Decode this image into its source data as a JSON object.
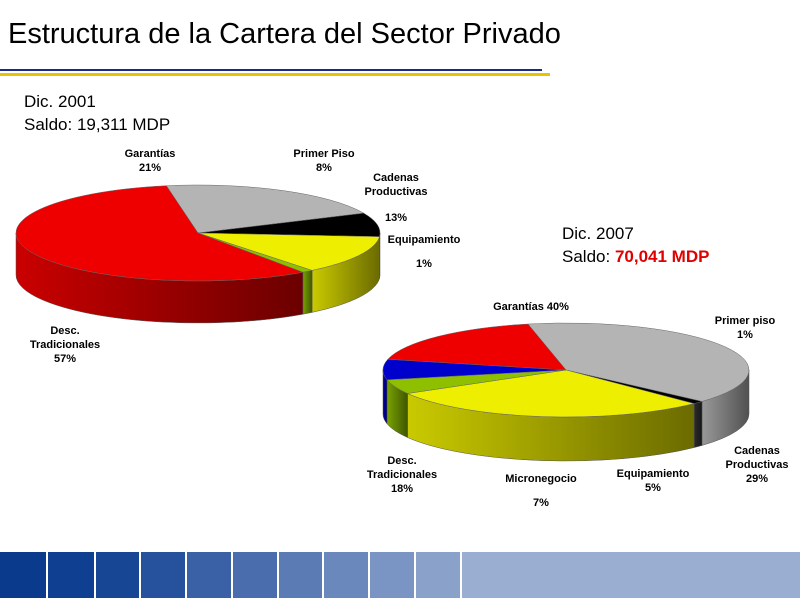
{
  "slide": {
    "title": "Estructura de la Cartera del Sector Privado"
  },
  "chart_data": [
    {
      "type": "pie",
      "info_line1": "Dic. 2001",
      "info_line2_prefix": "Saldo: ",
      "info_line2_value": "19,311 MDP",
      "slices": [
        {
          "label_lines": [
            "Garantías"
          ],
          "pct_label": "21%",
          "value": 21,
          "color": "#b4b4b4"
        },
        {
          "label_lines": [
            "Primer Piso"
          ],
          "pct_label": "8%",
          "value": 8,
          "color": "#000000"
        },
        {
          "label_lines": [
            "Cadenas",
            "Productivas"
          ],
          "pct_label": "13%",
          "value": 13,
          "color": "#eeee00"
        },
        {
          "label_lines": [
            "Equipamiento"
          ],
          "pct_label": "1%",
          "value": 1,
          "color": "#8ec000"
        },
        {
          "label_lines": [
            "Desc.",
            "Tradicionales"
          ],
          "pct_label": "57%",
          "value": 57,
          "color": "#ee0000"
        }
      ]
    },
    {
      "type": "pie",
      "info_line1": "Dic. 2007",
      "info_line2_prefix": "Saldo: ",
      "info_line2_value": "70,041 MDP",
      "slices": [
        {
          "label_lines": [
            "Garantías 40%"
          ],
          "pct_label": "",
          "value": 40,
          "color": "#b4b4b4"
        },
        {
          "label_lines": [
            "Primer piso"
          ],
          "pct_label": "1%",
          "value": 1,
          "color": "#000000"
        },
        {
          "label_lines": [
            "Cadenas",
            "Productivas"
          ],
          "pct_label": "29%",
          "value": 29,
          "color": "#eeee00"
        },
        {
          "label_lines": [
            "Equipamiento"
          ],
          "pct_label": "5%",
          "value": 5,
          "color": "#8ec000"
        },
        {
          "label_lines": [
            "Micronegocio"
          ],
          "pct_label": "7%",
          "value": 7,
          "color": "#0000cc"
        },
        {
          "label_lines": [
            "Desc.",
            "Tradicionales"
          ],
          "pct_label": "18%",
          "value": 18,
          "color": "#ee0000"
        }
      ]
    }
  ],
  "footer": {
    "colors": [
      "#0a3a8c",
      "#0e3f90",
      "#174694",
      "#26519c",
      "#3a60a6",
      "#4a6dae",
      "#5a7bb4",
      "#6a88bc",
      "#7a95c4",
      "#8aa2ca",
      "#9aaed2"
    ]
  }
}
